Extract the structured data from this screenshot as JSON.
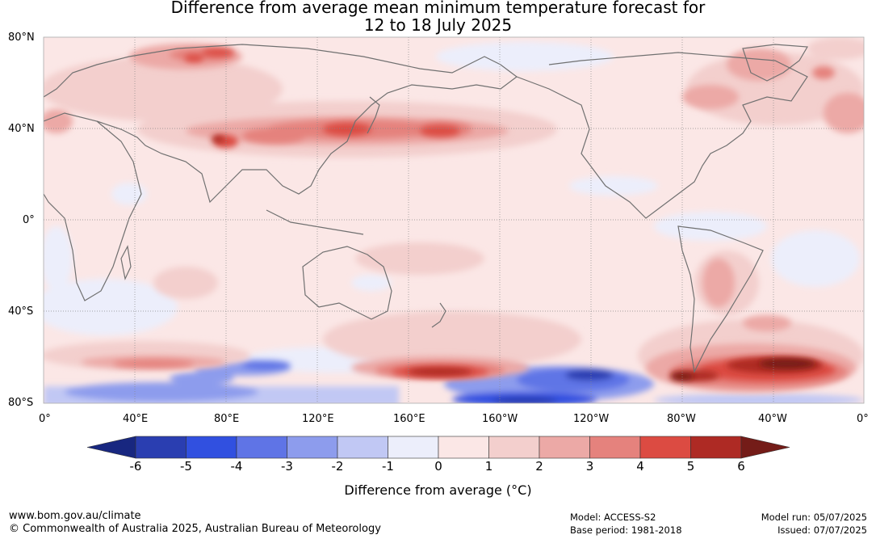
{
  "title": {
    "line1": "Difference from average mean minimum temperature forecast for",
    "line2": "12 to 18 July 2025"
  },
  "map": {
    "lat_labels": [
      "80°N",
      "40°N",
      "0°",
      "40°S",
      "80°S"
    ],
    "lon_labels": [
      "0°",
      "40°E",
      "80°E",
      "120°E",
      "160°E",
      "160°W",
      "120°W",
      "80°W",
      "40°W",
      "0°"
    ],
    "base_color": "#fbe7e6"
  },
  "colorbar": {
    "ticks": [
      "-6",
      "-5",
      "-4",
      "-3",
      "-2",
      "-1",
      "0",
      "1",
      "2",
      "3",
      "4",
      "5",
      "6"
    ],
    "colors": [
      "#182780",
      "#2a3eb1",
      "#3150e0",
      "#5f74e6",
      "#8d9ced",
      "#c1c8f4",
      "#eceefb",
      "#fbe7e6",
      "#f3cfcd",
      "#eca9a6",
      "#e5827d",
      "#dc4b42",
      "#ae2a24",
      "#741c18"
    ],
    "label": "Difference from average (°C)"
  },
  "footer": {
    "url": "www.bom.gov.au/climate",
    "copyright": "© Commonwealth of Australia 2025, Australian Bureau of Meteorology",
    "model": "Model: ACCESS-S2",
    "base_period": "Base period: 1981-2018",
    "model_run": "Model run: 05/07/2025",
    "issued": "Issued: 07/07/2025"
  }
}
